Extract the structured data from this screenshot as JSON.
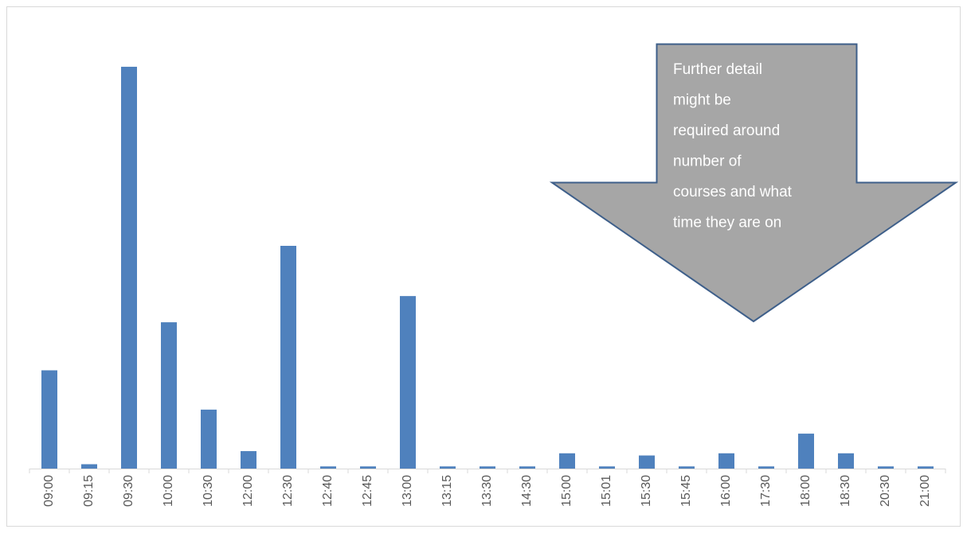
{
  "chart_data": {
    "type": "bar",
    "categories": [
      "09:00",
      "09:15",
      "09:30",
      "10:00",
      "10:30",
      "12:00",
      "12:30",
      "12:40",
      "12:45",
      "13:00",
      "13:15",
      "13:30",
      "14:30",
      "15:00",
      "15:01",
      "15:30",
      "15:45",
      "16:00",
      "17:30",
      "18:00",
      "18:30",
      "20:30",
      "21:00"
    ],
    "values": [
      45,
      2,
      184,
      67,
      27,
      8,
      102,
      1,
      1,
      79,
      1,
      1,
      1,
      7,
      1,
      6,
      1,
      7,
      1,
      16,
      7,
      1,
      1
    ],
    "color": "#4f81bd",
    "ylim": [
      0,
      200
    ],
    "grid": false,
    "annotation": [
      "Further detail",
      "might be",
      "required around",
      "number of",
      "courses and what",
      "time they are on"
    ]
  }
}
